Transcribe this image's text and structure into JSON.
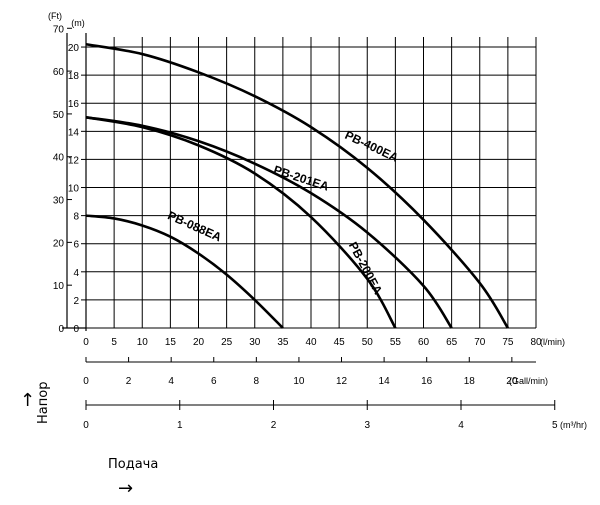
{
  "chart_data": {
    "type": "line",
    "x_axes": [
      {
        "unit": "(l/min)",
        "ticks": [
          "0",
          "5",
          "10",
          "15",
          "20",
          "25",
          "30",
          "35",
          "40",
          "45",
          "50",
          "55",
          "60",
          "65",
          "70",
          "75",
          "80"
        ],
        "range": [
          0,
          80
        ]
      },
      {
        "unit": "(Gall/min)",
        "ticks": [
          "0",
          "2",
          "4",
          "6",
          "8",
          "10",
          "12",
          "14",
          "16",
          "18",
          "20"
        ]
      },
      {
        "unit": "(m³/hr)",
        "ticks": [
          "0",
          "1",
          "2",
          "3",
          "4",
          "5"
        ]
      }
    ],
    "y_axes": [
      {
        "unit": "(Ft)",
        "ticks": [
          "0",
          "10",
          "20",
          "30",
          "40",
          "50",
          "60",
          "70"
        ]
      },
      {
        "unit": "(m)",
        "ticks": [
          "0",
          "2",
          "4",
          "6",
          "8",
          "10",
          "12",
          "14",
          "16",
          "18",
          "20"
        ],
        "range": [
          0,
          21
        ]
      }
    ],
    "series": [
      {
        "name": "PB-400EA",
        "x": [
          0,
          10,
          20,
          30,
          40,
          50,
          60,
          70,
          75
        ],
        "y": [
          20.2,
          19.5,
          18.2,
          16.5,
          14.3,
          11.4,
          7.7,
          3.2,
          0
        ]
      },
      {
        "name": "PB-201EA",
        "x": [
          0,
          10,
          20,
          30,
          40,
          50,
          60,
          65
        ],
        "y": [
          15.0,
          14.4,
          13.3,
          11.7,
          9.6,
          6.8,
          3.0,
          0
        ]
      },
      {
        "name": "PB-200EA",
        "x": [
          0,
          10,
          20,
          30,
          40,
          50,
          55
        ],
        "y": [
          15.0,
          14.3,
          13.0,
          11.0,
          7.9,
          3.5,
          0
        ]
      },
      {
        "name": "PB-088EA",
        "x": [
          0,
          5,
          10,
          15,
          20,
          25,
          30,
          35
        ],
        "y": [
          8.0,
          7.8,
          7.3,
          6.5,
          5.3,
          3.8,
          2.0,
          0
        ]
      }
    ],
    "grid": true
  },
  "axis_notes": {
    "head": "Напор",
    "flow": "Подача",
    "up_arrow": "↑",
    "right_arrow": "→"
  }
}
